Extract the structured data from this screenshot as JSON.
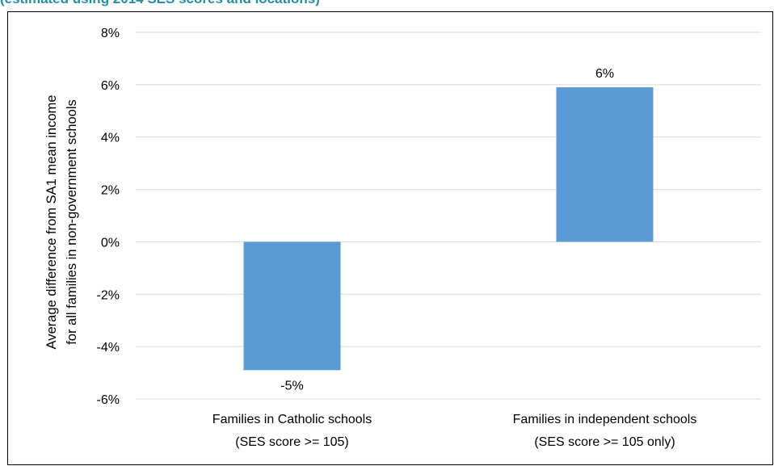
{
  "chart_data": {
    "type": "bar",
    "title": "(estimated using 2014 SES scores and locations)",
    "categories": [
      [
        "Families in Catholic schools",
        "(SES score >= 105)"
      ],
      [
        "Families in independent schools",
        "(SES score >= 105 only)"
      ]
    ],
    "values": [
      -4.9,
      5.9
    ],
    "data_labels": [
      "-5%",
      "6%"
    ],
    "ylabel": [
      "Average difference from SA1 mean income",
      "for all families in non-government schools"
    ],
    "ylim": [
      -6,
      8
    ],
    "yticks": [
      8,
      6,
      4,
      2,
      0,
      -2,
      -4,
      -6
    ],
    "ytick_labels": [
      "8%",
      "6%",
      "4%",
      "2%",
      "0%",
      "-2%",
      "-4%",
      "-6%"
    ],
    "grid": true,
    "legend": "none",
    "bar_color": "#5b9bd5",
    "grid_color": "#d9d9d9"
  }
}
